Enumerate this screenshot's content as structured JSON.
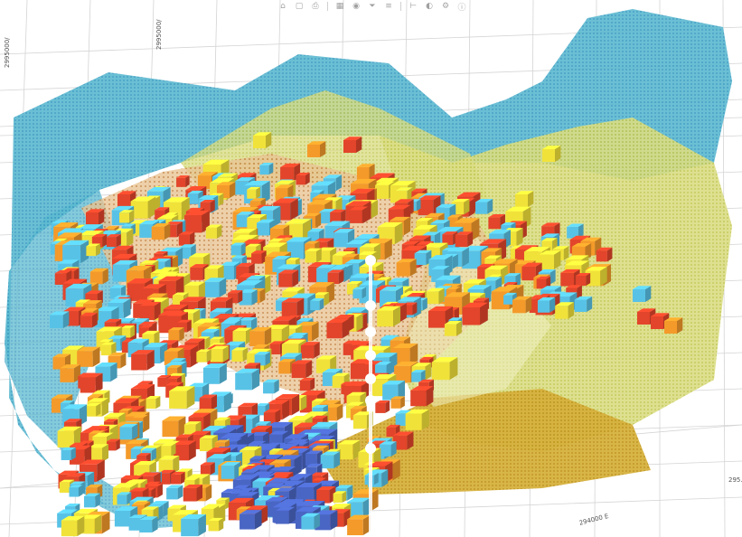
{
  "viewer": {
    "axis_labels": {
      "top_left_vertical": "2995000/",
      "top_center_vertical": "2995000/",
      "bottom_center": "294000 E",
      "right_edge": "295..."
    },
    "colors": {
      "shell_cyan": "#4fb6cf",
      "shell_yellow": "#d7d978",
      "block_red": "#e2452b",
      "block_orange": "#f49a2a",
      "block_yellow": "#f1e23a",
      "block_cyan": "#58c2e6",
      "block_blue": "#4a66c4",
      "grid": "#cfcfcf"
    },
    "toolbar": [
      "home-icon",
      "box-icon",
      "print-icon",
      "grid-icon",
      "camera-icon",
      "filter-icon",
      "layers-icon",
      "ruler-icon",
      "color-icon",
      "settings-icon",
      "info-icon"
    ]
  }
}
